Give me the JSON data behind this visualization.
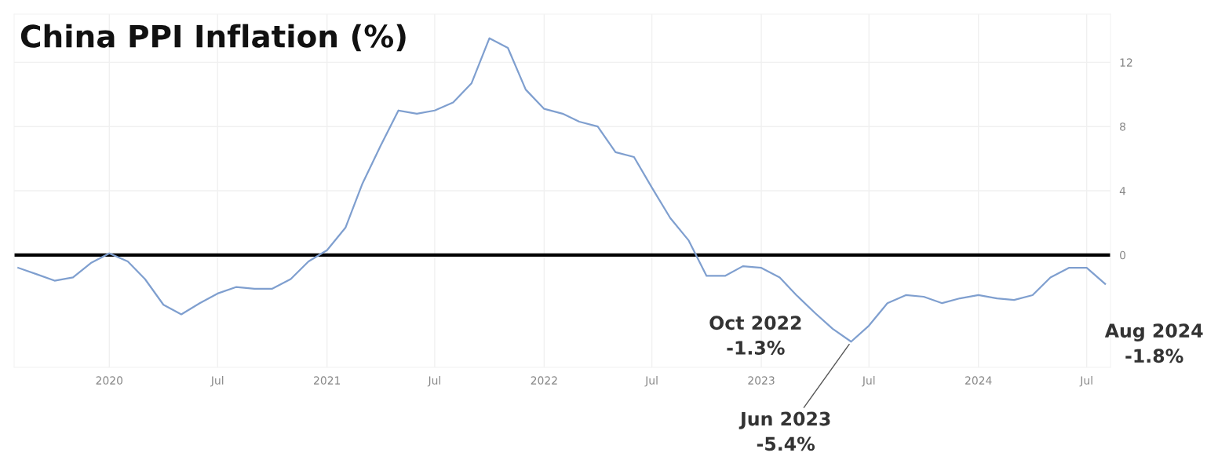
{
  "chart_data": {
    "type": "line",
    "title": "China PPI Inflation (%)",
    "x": [
      "2019-08",
      "2019-09",
      "2019-10",
      "2019-11",
      "2019-12",
      "2020-01",
      "2020-02",
      "2020-03",
      "2020-04",
      "2020-05",
      "2020-06",
      "2020-07",
      "2020-08",
      "2020-09",
      "2020-10",
      "2020-11",
      "2020-12",
      "2021-01",
      "2021-02",
      "2021-03",
      "2021-04",
      "2021-05",
      "2021-06",
      "2021-07",
      "2021-08",
      "2021-09",
      "2021-10",
      "2021-11",
      "2021-12",
      "2022-01",
      "2022-02",
      "2022-03",
      "2022-04",
      "2022-05",
      "2022-06",
      "2022-07",
      "2022-08",
      "2022-09",
      "2022-10",
      "2022-11",
      "2022-12",
      "2023-01",
      "2023-02",
      "2023-03",
      "2023-04",
      "2023-05",
      "2023-06",
      "2023-07",
      "2023-08",
      "2023-09",
      "2023-10",
      "2023-11",
      "2023-12",
      "2024-01",
      "2024-02",
      "2024-03",
      "2024-04",
      "2024-05",
      "2024-06",
      "2024-07",
      "2024-08"
    ],
    "series": [
      {
        "color": "#7f9fcf",
        "values": [
          -0.8,
          -1.2,
          -1.6,
          -1.4,
          -0.5,
          0.1,
          -0.4,
          -1.5,
          -3.1,
          -3.7,
          -3.0,
          -2.4,
          -2.0,
          -2.1,
          -2.1,
          -1.5,
          -0.4,
          0.3,
          1.7,
          4.4,
          6.8,
          9.0,
          8.8,
          9.0,
          9.5,
          10.7,
          13.5,
          12.9,
          10.3,
          9.1,
          8.8,
          8.3,
          8.0,
          6.4,
          6.1,
          4.2,
          2.3,
          0.9,
          -1.3,
          -1.3,
          -0.7,
          -0.8,
          -1.4,
          -2.5,
          -3.6,
          -4.6,
          -5.4,
          -4.4,
          -3.0,
          -2.5,
          -2.6,
          -3.0,
          -2.7,
          -2.5,
          -2.7,
          -2.8,
          -2.5,
          -1.4,
          -0.8,
          -0.8,
          -1.8
        ]
      }
    ],
    "xlim": [
      "2019-07-25",
      "2024-08-10"
    ],
    "xticks": [
      {
        "value": "2020-01-01",
        "label": "2020"
      },
      {
        "value": "2020-07-01",
        "label": "Jul"
      },
      {
        "value": "2021-01-01",
        "label": "2021"
      },
      {
        "value": "2021-07-01",
        "label": "Jul"
      },
      {
        "value": "2022-01-01",
        "label": "2022"
      },
      {
        "value": "2022-07-01",
        "label": "Jul"
      },
      {
        "value": "2023-01-01",
        "label": "2023"
      },
      {
        "value": "2023-07-01",
        "label": "Jul"
      },
      {
        "value": "2024-01-01",
        "label": "2024"
      },
      {
        "value": "2024-07-01",
        "label": "Jul"
      }
    ],
    "ylim": [
      -7,
      15
    ],
    "yticks": [
      0,
      4,
      8,
      12
    ],
    "grid": true,
    "ref_lines": [
      {
        "axis": "y",
        "value": 0,
        "color": "#000000"
      }
    ],
    "annotations": [
      {
        "text": "Oct 2022\n-1.3%",
        "x": "2022-10",
        "y": -1.3
      },
      {
        "text": "Jun 2023\n-5.4%",
        "x": "2023-06",
        "y": -5.4
      },
      {
        "text": "Aug 2024\n-1.8%",
        "x": "2024-08",
        "y": -1.8
      }
    ]
  }
}
